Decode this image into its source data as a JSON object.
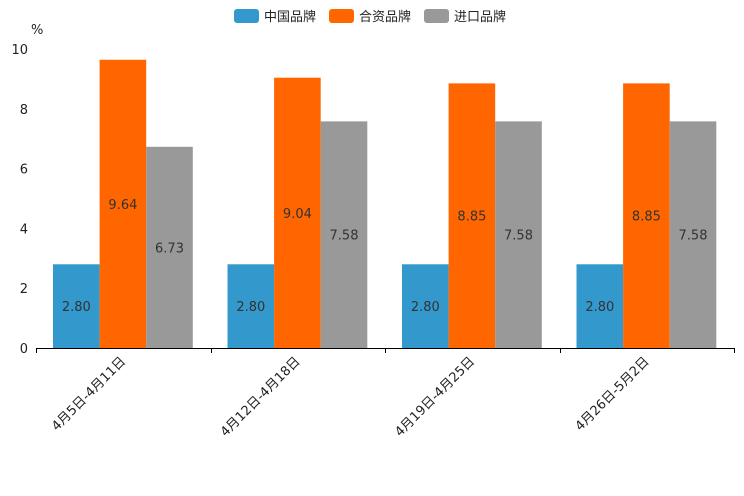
{
  "chart_data": {
    "type": "bar",
    "title": "",
    "ylabel": "%",
    "xlabel": "",
    "ylim": [
      0,
      10
    ],
    "yticks": [
      "0",
      "2",
      "4",
      "6",
      "8",
      "10"
    ],
    "grid": false,
    "legend_position": "top-center",
    "categories": [
      "4月5日-4月11日",
      "4月12日-4月18日",
      "4月19日-4月25日",
      "4月26日-5月2日"
    ],
    "series": [
      {
        "name": "中国品牌",
        "color": "#3399CC",
        "values": [
          2.8,
          2.8,
          2.8,
          2.8
        ],
        "labels": [
          "2.80",
          "2.80",
          "2.80",
          "2.80"
        ]
      },
      {
        "name": "合资品牌",
        "color": "#FF6600",
        "values": [
          9.64,
          9.04,
          8.85,
          8.85
        ],
        "labels": [
          "9.64",
          "9.04",
          "8.85",
          "8.85"
        ]
      },
      {
        "name": "进口品牌",
        "color": "#999999",
        "values": [
          6.73,
          7.58,
          7.58,
          7.58
        ],
        "labels": [
          "6.73",
          "7.58",
          "7.58",
          "7.58"
        ]
      }
    ]
  }
}
